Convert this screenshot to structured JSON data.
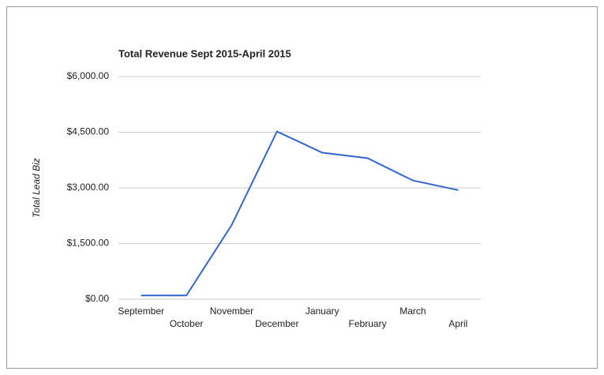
{
  "chart_data": {
    "type": "line",
    "title": "Total Revenue Sept 2015-April 2015",
    "y_label": "Total Lead Biz",
    "categories": [
      "September",
      "October",
      "November",
      "December",
      "January",
      "February",
      "March",
      "April"
    ],
    "series": [
      {
        "name": "Total Lead Biz",
        "color": "#3366cc",
        "values": [
          100,
          100,
          2000,
          4520,
          3950,
          3800,
          3200,
          2940
        ]
      }
    ],
    "ylim": [
      0,
      6000
    ],
    "yticks": [
      {
        "value": 0,
        "label": "$0.00"
      },
      {
        "value": 1500,
        "label": "$1,500.00"
      },
      {
        "value": 3000,
        "label": "$3,000.00"
      },
      {
        "value": 4500,
        "label": "$4,500.00"
      },
      {
        "value": 6000,
        "label": "$6,000.00"
      }
    ],
    "grid": true
  }
}
